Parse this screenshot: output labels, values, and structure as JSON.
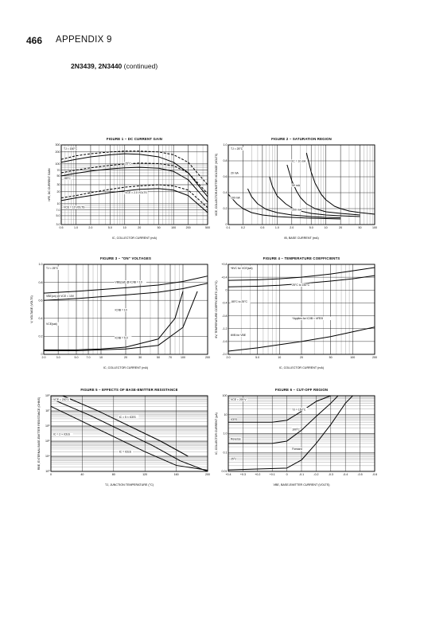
{
  "page_header": {
    "page_number": "466",
    "section": "APPENDIX 9",
    "part_number": "2N3439, 2N3440",
    "continued": "(continued)"
  },
  "chart_data": [
    {
      "type": "line",
      "title": "FIGURE 1 – DC CURRENT GAIN",
      "xlabel": "IC, COLLECTOR CURRENT (mA)",
      "ylabel": "hFE, DC CURRENT GAIN",
      "x_scale": "log",
      "y_scale": "log",
      "xlim": [
        0.5,
        500
      ],
      "ylim": [
        3.0,
        300
      ],
      "x_ticks": [
        "0.5",
        "1.0",
        "2.0",
        "5.0",
        "10",
        "20",
        "50",
        "100",
        "200",
        "500"
      ],
      "y_ticks": [
        "300",
        "200",
        "100",
        "70",
        "50",
        "30",
        "20",
        "10",
        "7.0",
        "5.0",
        "3.0"
      ],
      "annotations": [
        "TJ = 150°C",
        "25°C",
        "-55°C",
        "VCE = 2.0 VOLTS",
        "VCE = 10 VOLTS"
      ],
      "series": [
        {
          "style": "solid",
          "x": [
            0.5,
            1,
            2,
            5,
            10,
            20,
            50,
            100,
            200,
            500
          ],
          "y": [
            110,
            130,
            150,
            170,
            180,
            175,
            150,
            110,
            60,
            15
          ]
        },
        {
          "style": "dashed",
          "x": [
            0.5,
            1,
            2,
            5,
            10,
            20,
            50,
            100,
            200,
            500
          ],
          "y": [
            130,
            160,
            180,
            200,
            210,
            210,
            200,
            170,
            110,
            30
          ]
        },
        {
          "style": "solid",
          "x": [
            0.5,
            1,
            2,
            5,
            10,
            20,
            50,
            100,
            200,
            500
          ],
          "y": [
            50,
            58,
            66,
            75,
            80,
            82,
            78,
            65,
            40,
            11
          ]
        },
        {
          "style": "dashed",
          "x": [
            0.5,
            1,
            2,
            5,
            10,
            20,
            50,
            100,
            200,
            500
          ],
          "y": [
            60,
            70,
            80,
            92,
            100,
            105,
            102,
            90,
            60,
            18
          ]
        },
        {
          "style": "solid",
          "x": [
            0.5,
            1,
            2,
            5,
            10,
            20,
            50,
            100,
            200,
            500
          ],
          "y": [
            12,
            14,
            16,
            19,
            21,
            23,
            24,
            22,
            16,
            6
          ]
        },
        {
          "style": "dashed",
          "x": [
            0.5,
            1,
            2,
            5,
            10,
            20,
            50,
            100,
            200,
            500
          ],
          "y": [
            14,
            16,
            19,
            23,
            26,
            28,
            30,
            28,
            22,
            8
          ]
        }
      ]
    },
    {
      "type": "line",
      "title": "FIGURE 2 – SATURATION REGION",
      "xlabel": "IB, BASE CURRENT (mA)",
      "ylabel": "VCE, COLLECTOR-EMITTER VOLTAGE (VOLTS)",
      "x_scale": "log",
      "y_scale": "linear",
      "xlim": [
        0.1,
        100
      ],
      "ylim": [
        0,
        1.0
      ],
      "x_ticks": [
        "0.1",
        "0.2",
        "0.5",
        "1.0",
        "2.0",
        "5.0",
        "10",
        "20",
        "50",
        "100"
      ],
      "y_ticks": [
        "1.0",
        "0.8",
        "0.6",
        "0.4",
        "0.2",
        "0"
      ],
      "annotations": [
        "TJ = 25°C",
        "IC = 10 mA",
        "20 mA",
        "50 mA",
        "100 mA",
        "200 mA"
      ],
      "series": [
        {
          "name": "IC = 10 mA",
          "x": [
            0.1,
            0.15,
            0.2,
            0.3,
            0.5,
            1,
            2,
            5,
            10,
            20
          ],
          "y": [
            0.38,
            0.26,
            0.2,
            0.15,
            0.12,
            0.1,
            0.09,
            0.08,
            0.075,
            0.07
          ]
        },
        {
          "name": "20 mA",
          "x": [
            0.25,
            0.3,
            0.4,
            0.6,
            1,
            2,
            5,
            10,
            20
          ],
          "y": [
            0.45,
            0.35,
            0.26,
            0.19,
            0.15,
            0.12,
            0.1,
            0.09,
            0.085
          ]
        },
        {
          "name": "50 mA",
          "x": [
            0.7,
            0.8,
            1,
            1.5,
            2,
            3,
            5,
            10,
            20,
            50
          ],
          "y": [
            0.6,
            0.48,
            0.36,
            0.26,
            0.21,
            0.17,
            0.14,
            0.12,
            0.11,
            0.1
          ]
        },
        {
          "name": "100 mA",
          "x": [
            1.6,
            2,
            2.5,
            3,
            4,
            6,
            10,
            20,
            50
          ],
          "y": [
            0.75,
            0.55,
            0.42,
            0.34,
            0.26,
            0.2,
            0.16,
            0.14,
            0.12
          ]
        },
        {
          "name": "200 mA",
          "x": [
            4,
            5,
            6,
            8,
            10,
            15,
            20,
            30,
            50,
            100
          ],
          "y": [
            0.9,
            0.66,
            0.52,
            0.38,
            0.31,
            0.23,
            0.2,
            0.17,
            0.15,
            0.13
          ]
        }
      ]
    },
    {
      "type": "line",
      "title": "FIGURE 3 – \"ON\" VOLTAGES",
      "xlabel": "IC, COLLECTOR CURRENT (mA)",
      "ylabel": "V, VOLTAGE (VOLTS)",
      "x_scale": "log",
      "y_scale": "linear",
      "xlim": [
        2.0,
        200
      ],
      "ylim": [
        0,
        1.0
      ],
      "x_ticks": [
        "2.0",
        "3.0",
        "5.0",
        "7.0",
        "10",
        "20",
        "30",
        "50",
        "70",
        "100",
        "200"
      ],
      "y_ticks": [
        "1.0",
        "0.8",
        "0.6",
        "0.4",
        "0.2",
        "0"
      ],
      "annotations": [
        "TJ = 25°C",
        "VBE(sat) @ IC/IB = 10",
        "VBE(on) @ VCE = 10V",
        "IC/IB = 10",
        "VCE(sat)",
        "IC/IB = 5.0"
      ],
      "series": [
        {
          "name": "VBE(sat) @ IC/IB = 10",
          "x": [
            2,
            5,
            10,
            20,
            50,
            100,
            200
          ],
          "y": [
            0.68,
            0.7,
            0.72,
            0.74,
            0.77,
            0.81,
            0.87
          ]
        },
        {
          "name": "VBE(on) @ VCE = 10V",
          "x": [
            2,
            5,
            10,
            20,
            50,
            100,
            200
          ],
          "y": [
            0.6,
            0.62,
            0.64,
            0.66,
            0.69,
            0.73,
            0.79
          ]
        },
        {
          "name": "IC/IB = 10",
          "x": [
            2,
            5,
            10,
            20,
            50,
            80,
            100
          ],
          "y": [
            0.05,
            0.05,
            0.06,
            0.08,
            0.17,
            0.4,
            0.7
          ]
        },
        {
          "name": "IC/IB = 5.0",
          "x": [
            2,
            5,
            10,
            20,
            50,
            100,
            150
          ],
          "y": [
            0.04,
            0.04,
            0.05,
            0.06,
            0.1,
            0.3,
            0.7
          ]
        }
      ]
    },
    {
      "type": "line",
      "title": "FIGURE 4 – TEMPERATURE COEFFICIENTS",
      "xlabel": "IC, COLLECTOR CURRENT (mA)",
      "ylabel": "θV, TEMPERATURE COEFFICIENTS (mV/°C)",
      "x_scale": "log",
      "y_scale": "linear",
      "xlim": [
        2.0,
        200
      ],
      "ylim": [
        -2.0,
        0.8
      ],
      "x_ticks": [
        "2.0",
        "5.0",
        "10",
        "20",
        "50",
        "100",
        "200"
      ],
      "y_ticks": [
        "+0.8",
        "+0.4",
        "0",
        "-0.4",
        "-0.8",
        "-1.2",
        "-1.6",
        "-2.0"
      ],
      "annotations": [
        "*θVC for VCE(sat)",
        "25°C to 150°C",
        "-55°C to 25°C",
        "*Applies for IC/IB < hFE/5",
        "θVB for VBE"
      ],
      "series": [
        {
          "name": "θVC 25°C to 150°C",
          "x": [
            2,
            5,
            10,
            20,
            50,
            100,
            200
          ],
          "y": [
            0.3,
            0.32,
            0.35,
            0.4,
            0.5,
            0.6,
            0.7
          ]
        },
        {
          "name": "θVC -55°C to 25°C",
          "x": [
            2,
            5,
            10,
            20,
            50,
            100,
            200
          ],
          "y": [
            0.1,
            0.12,
            0.15,
            0.2,
            0.28,
            0.35,
            0.45
          ]
        },
        {
          "name": "θVB for VBE",
          "x": [
            2,
            5,
            10,
            20,
            50,
            100,
            200
          ],
          "y": [
            -1.9,
            -1.8,
            -1.7,
            -1.6,
            -1.45,
            -1.3,
            -1.15
          ]
        }
      ]
    },
    {
      "type": "line",
      "title": "FIGURE 5 – EFFECTS OF BASE-EMITTER RESISTANCE",
      "xlabel": "TJ, JUNCTION TEMPERATURE (°C)",
      "ylabel": "RBE, EXTERNAL BASE-EMITTER RESISTANCE (OHMS)",
      "x_scale": "linear",
      "y_scale": "log",
      "xlim": [
        0,
        200
      ],
      "ylim": [
        1000,
        100000000
      ],
      "x_ticks": [
        "0",
        "40",
        "80",
        "120",
        "160",
        "200"
      ],
      "y_ticks": [
        "10⁸",
        "10⁷",
        "10⁶",
        "10⁵",
        "10⁴",
        "10³"
      ],
      "annotations": [
        "VCE = 200 V",
        "IC = 5 × ICES",
        "IC = 2 × ICES",
        "IC = ICES"
      ],
      "series": [
        {
          "name": "IC = 5 × ICES",
          "x": [
            15,
            60,
            100,
            140,
            175
          ],
          "y": [
            100000000,
            10000000,
            1000000,
            100000,
            10000
          ]
        },
        {
          "name": "IC = 2 × ICES",
          "x": [
            5,
            50,
            90,
            130,
            165,
            200
          ],
          "y": [
            50000000,
            5000000,
            500000,
            50000,
            5000,
            1000
          ]
        },
        {
          "name": "IC = ICES",
          "x": [
            0,
            40,
            80,
            120,
            160,
            200
          ],
          "y": [
            20000000,
            2000000,
            200000,
            20000,
            2500,
            1200
          ]
        }
      ]
    },
    {
      "type": "line",
      "title": "FIGURE 6 – CUT-OFF REGION",
      "xlabel": "VBE, BASE-EMITTER CURRENT (VOLTS)",
      "ylabel": "IC, COLLECTOR CURRENT (μA)",
      "x_scale": "linear",
      "y_scale": "log",
      "xlim": [
        0.4,
        -0.6
      ],
      "ylim": [
        0.01,
        100
      ],
      "x_ticks": [
        "+0.4",
        "+0.3",
        "+0.2",
        "+0.1",
        "0",
        "-0.1",
        "-0.2",
        "-0.3",
        "-0.4",
        "-0.5",
        "-0.6"
      ],
      "y_ticks": [
        "100",
        "10",
        "1.0",
        "0.1",
        "0.01"
      ],
      "annotations": [
        "VCE = 200 V",
        "TJ = 150°C",
        "ICES",
        "100°C",
        "Reverse",
        "Forward",
        "25°C"
      ],
      "series": [
        {
          "name": "TJ = 150°C",
          "x": [
            0.4,
            0.1,
            0,
            -0.1,
            -0.2,
            -0.3
          ],
          "y": [
            4,
            4,
            5,
            15,
            50,
            100
          ]
        },
        {
          "name": "100°C",
          "x": [
            0.4,
            0.1,
            0,
            -0.1,
            -0.2,
            -0.3,
            -0.35
          ],
          "y": [
            0.3,
            0.3,
            0.4,
            1.5,
            8,
            40,
            100
          ]
        },
        {
          "name": "25°C",
          "x": [
            0.4,
            0,
            -0.1,
            -0.2,
            -0.3,
            -0.4,
            -0.45
          ],
          "y": [
            0.012,
            0.015,
            0.04,
            0.3,
            3,
            40,
            100
          ]
        }
      ]
    }
  ]
}
